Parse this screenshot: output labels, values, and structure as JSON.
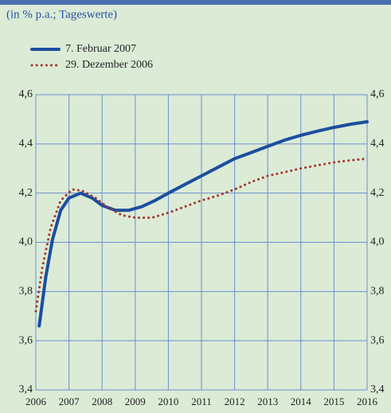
{
  "chart_data": {
    "type": "line",
    "subtitle": "(in % p.a.; Tageswerte)",
    "xlim": [
      2006,
      2016
    ],
    "xticks": [
      2006,
      2007,
      2008,
      2009,
      2010,
      2011,
      2012,
      2013,
      2014,
      2015,
      2016
    ],
    "ylim": [
      3.4,
      4.6
    ],
    "yticks": [
      {
        "value": 3.4,
        "label": "3,4"
      },
      {
        "value": 3.6,
        "label": "3,6"
      },
      {
        "value": 3.8,
        "label": "3,8"
      },
      {
        "value": 4.0,
        "label": "4,0"
      },
      {
        "value": 4.2,
        "label": "4,2"
      },
      {
        "value": 4.4,
        "label": "4,4"
      },
      {
        "value": 4.6,
        "label": "4,6"
      }
    ],
    "grid": true,
    "legend": "top-left",
    "series": [
      {
        "name": "7. Februar 2007",
        "color": "#1b4e9e",
        "style": "solid",
        "x": [
          2006.1,
          2006.3,
          2006.5,
          2006.75,
          2007.0,
          2007.35,
          2007.7,
          2008.0,
          2008.4,
          2008.8,
          2009.2,
          2009.6,
          2010,
          2010.5,
          2011,
          2011.5,
          2012,
          2012.5,
          2013,
          2013.5,
          2014,
          2014.5,
          2015,
          2015.5,
          2016
        ],
        "values": [
          3.66,
          3.86,
          4.01,
          4.13,
          4.18,
          4.2,
          4.18,
          4.15,
          4.13,
          4.13,
          4.145,
          4.17,
          4.2,
          4.235,
          4.27,
          4.305,
          4.34,
          4.365,
          4.39,
          4.415,
          4.435,
          4.452,
          4.467,
          4.48,
          4.49
        ]
      },
      {
        "name": "29. Dezember 2006",
        "color": "#a6322c",
        "style": "dotted",
        "x": [
          2006.0,
          2006.2,
          2006.45,
          2006.75,
          2007.1,
          2007.4,
          2007.8,
          2008.2,
          2008.6,
          2009.0,
          2009.5,
          2010,
          2010.5,
          2011,
          2011.5,
          2012,
          2012.5,
          2013,
          2013.5,
          2014,
          2014.5,
          2015,
          2015.5,
          2016
        ],
        "values": [
          3.72,
          3.9,
          4.06,
          4.17,
          4.215,
          4.21,
          4.18,
          4.14,
          4.11,
          4.1,
          4.1,
          4.12,
          4.145,
          4.17,
          4.19,
          4.215,
          4.245,
          4.27,
          4.285,
          4.3,
          4.313,
          4.325,
          4.333,
          4.34
        ]
      }
    ]
  }
}
